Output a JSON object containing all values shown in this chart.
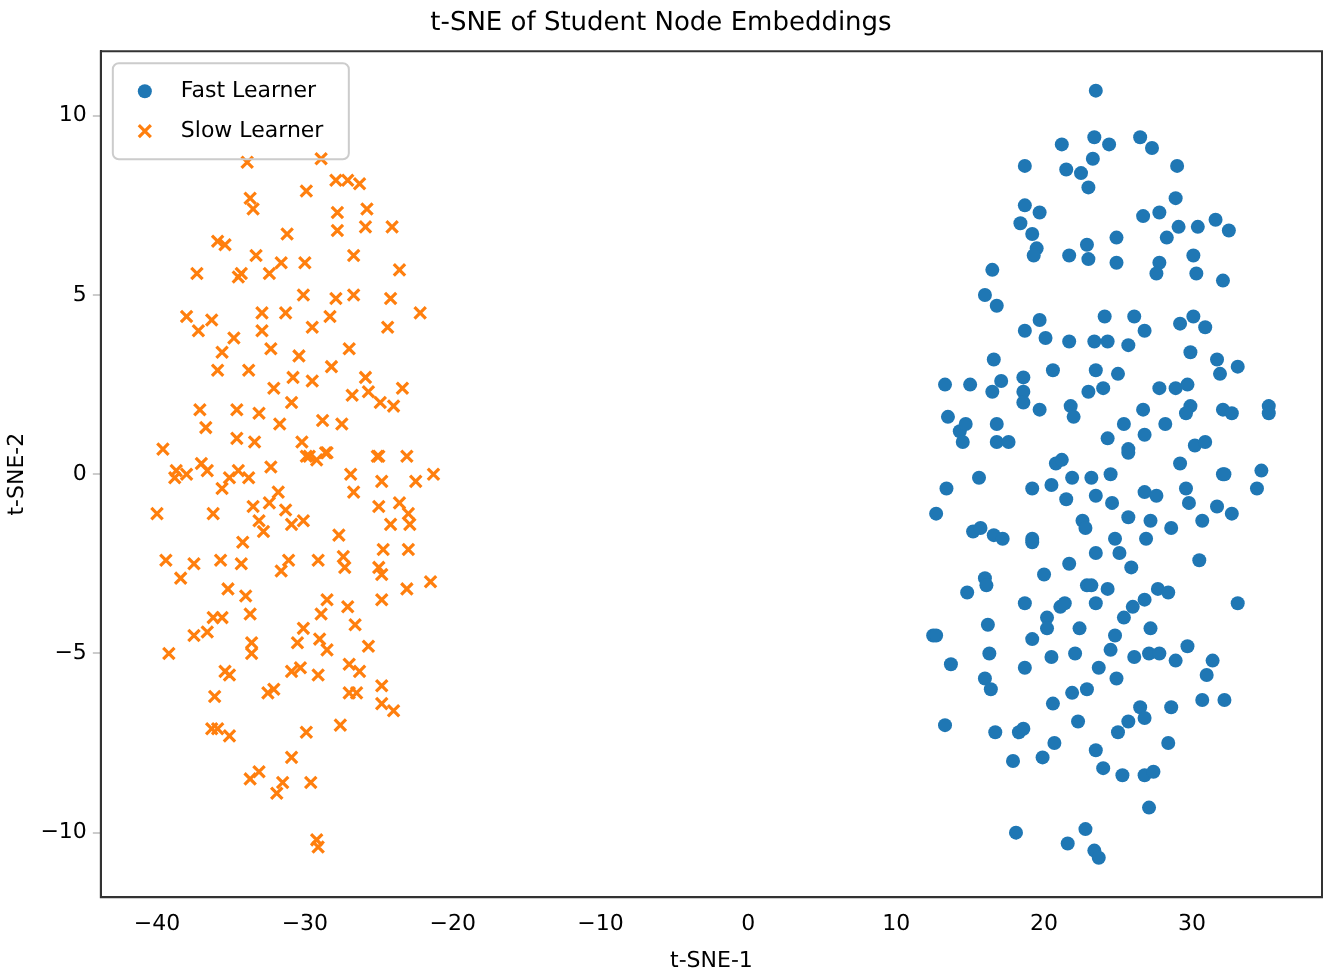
{
  "chart_data": {
    "type": "scatter",
    "title": "t-SNE of Student Node Embeddings",
    "xlabel": "t-SNE-1",
    "ylabel": "t-SNE-2",
    "xlim": [
      -43.8,
      38.8
    ],
    "ylim": [
      -11.8,
      11.8
    ],
    "xticks": [
      -40,
      -30,
      -20,
      -10,
      0,
      10,
      20,
      30
    ],
    "yticks": [
      -10,
      -5,
      0,
      5,
      10
    ],
    "grid": false,
    "legend": "top left",
    "series": [
      {
        "name": "Fast Learner",
        "color": "#1f77b4",
        "marker": "circle",
        "x": [
          23.5,
          21.2,
          23.4,
          24.4,
          26.5,
          27.3,
          18.7,
          21.5,
          22.5,
          23.3,
          23.0,
          29.0,
          28.9,
          18.7,
          19.7,
          18.4,
          19.2,
          19.5,
          19.3,
          21.7,
          22.9,
          23.0,
          24.9,
          24.9,
          26.7,
          27.8,
          29.1,
          30.4,
          31.6,
          32.5,
          28.3,
          27.8,
          27.6,
          30.1,
          30.3,
          32.1,
          16.5,
          16.0,
          16.8,
          19.7,
          18.7,
          20.1,
          21.7,
          23.4,
          24.3,
          24.1,
          26.1,
          26.8,
          25.7,
          29.2,
          30.1,
          30.9,
          29.9,
          31.7,
          31.9,
          33.1,
          16.6,
          13.3,
          15.0,
          17.1,
          16.5,
          18.6,
          18.6,
          18.6,
          20.6,
          23.5,
          25.0,
          23.0,
          24.0,
          21.8,
          22.0,
          19.7,
          27.8,
          28.9,
          29.7,
          29.9,
          29.6,
          32.1,
          32.7,
          35.2,
          35.2,
          13.5,
          14.3,
          14.7,
          14.5,
          16.8,
          16.8,
          17.6,
          26.7,
          25.4,
          26.8,
          28.2,
          24.3,
          25.7,
          30.2,
          30.9,
          15.6,
          20.8,
          21.2,
          23.2,
          24.5,
          29.2,
          32.1,
          34.7,
          13.4,
          12.7,
          19.2,
          20.5,
          21.9,
          21.5,
          23.5,
          24.6,
          25.7,
          26.8,
          27.6,
          29.6,
          29.8,
          31.7,
          32.2,
          34.4,
          32.7,
          30.7,
          28.6,
          27.2,
          26.9,
          25.7,
          22.6,
          22.8,
          24.8,
          15.2,
          15.7,
          16.6,
          17.2,
          19.2,
          19.2,
          23.5,
          25.1,
          25.9,
          21.7,
          30.5,
          20.0,
          16.0,
          16.1,
          14.8,
          18.7,
          21.1,
          21.4,
          22.9,
          23.2,
          24.3,
          23.5,
          26.0,
          26.8,
          27.7,
          28.4,
          33.1,
          16.2,
          12.5,
          12.7,
          20.2,
          20.2,
          19.2,
          22.4,
          25.4,
          24.8,
          27.2,
          24.5,
          26.1,
          27.1,
          27.8,
          28.9,
          29.7,
          31.4,
          16.3,
          13.7,
          18.7,
          20.5,
          22.1,
          23.7,
          24.9,
          16.0,
          16.4,
          21.9,
          22.9,
          31.0,
          30.7,
          32.2,
          20.6,
          26.5,
          26.8,
          25.7,
          25.0,
          28.6,
          22.3,
          13.3,
          16.7,
          18.3,
          18.6,
          20.7,
          19.9,
          17.9,
          23.5,
          24.0,
          25.3,
          26.8,
          27.4,
          28.4,
          27.1,
          18.1,
          21.6,
          22.8,
          23.4,
          23.7
        ],
        "values": [
          10.7,
          9.2,
          9.4,
          9.2,
          9.4,
          9.1,
          8.6,
          8.5,
          8.4,
          8.8,
          8.0,
          8.6,
          7.7,
          7.5,
          7.3,
          7.0,
          6.7,
          6.3,
          6.1,
          6.1,
          6.4,
          6.0,
          6.6,
          5.9,
          7.2,
          7.3,
          6.9,
          6.9,
          7.1,
          6.8,
          6.6,
          5.9,
          5.6,
          6.1,
          5.6,
          5.4,
          5.7,
          5.0,
          4.7,
          4.3,
          4.0,
          3.8,
          3.7,
          3.7,
          3.7,
          4.4,
          4.4,
          4.0,
          3.6,
          4.2,
          4.4,
          4.1,
          3.4,
          3.2,
          2.8,
          3.0,
          3.2,
          2.5,
          2.5,
          2.6,
          2.3,
          2.7,
          2.3,
          2.0,
          2.9,
          2.9,
          2.8,
          2.3,
          2.4,
          1.9,
          1.6,
          1.8,
          2.4,
          2.4,
          2.5,
          1.9,
          1.7,
          1.8,
          1.7,
          1.9,
          1.7,
          1.6,
          1.2,
          1.4,
          0.9,
          1.4,
          0.9,
          0.9,
          1.8,
          1.4,
          1.1,
          1.4,
          1.0,
          0.7,
          0.8,
          0.9,
          -0.1,
          0.3,
          0.4,
          -0.1,
          0.0,
          0.3,
          0.0,
          0.1,
          -0.4,
          -1.1,
          -0.4,
          -0.3,
          -0.1,
          -0.7,
          -0.6,
          -0.8,
          0.6,
          -0.5,
          -0.6,
          -0.4,
          -0.8,
          -0.9,
          0.0,
          -0.4,
          -1.1,
          -1.3,
          -1.5,
          -1.3,
          -1.8,
          -1.2,
          -1.3,
          -1.5,
          -1.8,
          -1.6,
          -1.5,
          -1.7,
          -1.8,
          -1.8,
          -1.9,
          -2.2,
          -2.2,
          -2.6,
          -2.5,
          -2.4,
          -2.8,
          -2.9,
          -3.1,
          -3.3,
          -3.6,
          -3.7,
          -3.6,
          -3.1,
          -3.1,
          -3.2,
          -3.6,
          -3.7,
          -3.5,
          -3.2,
          -3.3,
          -3.6,
          -4.2,
          -4.5,
          -4.5,
          -4.0,
          -4.3,
          -4.6,
          -4.3,
          -4.0,
          -4.5,
          -4.3,
          -4.9,
          -5.1,
          -5.0,
          -5.0,
          -5.2,
          -4.8,
          -5.2,
          -5.0,
          -5.3,
          -5.4,
          -5.1,
          -5.0,
          -5.4,
          -5.7,
          -5.7,
          -6.0,
          -6.1,
          -6.0,
          -5.6,
          -6.3,
          -6.3,
          -6.4,
          -6.5,
          -6.8,
          -6.9,
          -7.2,
          -6.5,
          -6.9,
          -7.0,
          -7.2,
          -7.2,
          -7.1,
          -7.5,
          -7.9,
          -8.0,
          -7.7,
          -8.2,
          -8.4,
          -8.4,
          -8.3,
          -7.5,
          -9.3,
          -10.0,
          -10.3,
          -9.9,
          -10.5,
          -10.7
        ]
      },
      {
        "name": "Slow Learner",
        "color": "#ff7f0e",
        "marker": "cross",
        "x": [
          -33.9,
          -28.9,
          -27.9,
          -27.1,
          -26.3,
          -29.9,
          -33.7,
          -33.5,
          -27.8,
          -25.8,
          -27.8,
          -25.9,
          -24.1,
          -31.2,
          -35.9,
          -35.4,
          -37.3,
          -34.5,
          -34.3,
          -33.3,
          -32.4,
          -31.6,
          -30.0,
          -26.7,
          -23.6,
          -30.1,
          -27.9,
          -26.7,
          -28.3,
          -24.2,
          -22.2,
          -38.0,
          -37.2,
          -36.3,
          -32.9,
          -32.9,
          -31.3,
          -34.8,
          -29.5,
          -24.4,
          -35.6,
          -32.3,
          -30.4,
          -27.0,
          -35.9,
          -33.8,
          -30.8,
          -29.5,
          -28.2,
          -32.1,
          -25.9,
          -26.8,
          -25.7,
          -24.9,
          -24.0,
          -23.4,
          -30.9,
          -37.1,
          -34.6,
          -33.1,
          -36.7,
          -31.7,
          -28.8,
          -27.5,
          -34.6,
          -33.4,
          -30.2,
          -39.6,
          -25.1,
          -23.1,
          -29.7,
          -28.6,
          -38.7,
          -38.8,
          -38.0,
          -37.0,
          -36.6,
          -35.6,
          -35.1,
          -34.5,
          -33.8,
          -32.3,
          -31.8,
          -29.9,
          -29.2,
          -28.5,
          -26.9,
          -26.7,
          -25.0,
          -24.8,
          -22.5,
          -21.3,
          -40.0,
          -36.2,
          -33.5,
          -32.4,
          -31.3,
          -33.1,
          -32.8,
          -30.9,
          -30.1,
          -27.7,
          -25.0,
          -23.6,
          -23.0,
          -24.2,
          -22.9,
          -34.2,
          -24.7,
          -23.0,
          -39.4,
          -38.4,
          -37.5,
          -35.7,
          -34.3,
          -31.6,
          -31.1,
          -29.1,
          -27.4,
          -27.3,
          -25.0,
          -24.8,
          -21.5,
          -35.2,
          -34.0,
          -33.7,
          -28.5,
          -27.1,
          -24.8,
          -23.1,
          -36.2,
          -35.6,
          -36.6,
          -37.5,
          -28.9,
          -26.6,
          -30.1,
          -30.5,
          -29.0,
          -28.5,
          -25.7,
          -33.6,
          -33.6,
          -39.2,
          -35.4,
          -35.1,
          -30.9,
          -30.3,
          -29.1,
          -27.0,
          -26.3,
          -27.0,
          -26.5,
          -24.8,
          -24.8,
          -24.0,
          -32.5,
          -32.1,
          -36.1,
          -36.3,
          -35.9,
          -35.1,
          -29.9,
          -27.6,
          -30.9,
          -33.7,
          -33.1,
          -31.5,
          -31.9,
          -29.6,
          -29.2,
          -29.1
        ],
        "values": [
          8.7,
          8.8,
          8.2,
          8.2,
          8.1,
          7.9,
          7.7,
          7.4,
          7.3,
          7.4,
          6.8,
          6.9,
          6.9,
          6.7,
          6.5,
          6.4,
          5.6,
          5.5,
          5.6,
          6.1,
          5.6,
          5.9,
          5.9,
          6.1,
          5.7,
          5.0,
          4.9,
          5.0,
          4.4,
          4.9,
          4.5,
          4.4,
          4.0,
          4.3,
          4.5,
          4.0,
          4.5,
          3.8,
          4.1,
          4.1,
          3.4,
          3.5,
          3.3,
          3.5,
          2.9,
          2.9,
          2.7,
          2.6,
          3.0,
          2.4,
          2.7,
          2.2,
          2.3,
          2.0,
          1.9,
          2.4,
          2.0,
          1.8,
          1.8,
          1.7,
          1.3,
          1.4,
          1.5,
          1.4,
          1.0,
          0.9,
          0.9,
          0.7,
          0.5,
          0.5,
          0.5,
          0.6,
          0.1,
          -0.1,
          0.0,
          0.3,
          0.1,
          -0.4,
          -0.1,
          0.1,
          -0.1,
          0.2,
          -0.5,
          0.5,
          0.4,
          0.6,
          0.0,
          -0.5,
          0.5,
          -0.2,
          -0.2,
          0.0,
          -1.1,
          -1.1,
          -0.9,
          -0.8,
          -1.0,
          -1.3,
          -1.6,
          -1.4,
          -1.3,
          -1.7,
          -0.9,
          -0.8,
          -1.1,
          -1.4,
          -1.4,
          -1.9,
          -2.1,
          -2.1,
          -2.4,
          -2.9,
          -2.5,
          -2.4,
          -2.5,
          -2.7,
          -2.4,
          -2.4,
          -2.3,
          -2.6,
          -2.6,
          -2.8,
          -3.0,
          -3.2,
          -3.4,
          -3.9,
          -3.5,
          -3.7,
          -3.5,
          -3.2,
          -4.0,
          -4.0,
          -4.4,
          -4.5,
          -3.9,
          -4.2,
          -4.3,
          -4.7,
          -4.6,
          -4.9,
          -4.8,
          -4.7,
          -5.0,
          -5.0,
          -5.5,
          -5.6,
          -5.5,
          -5.4,
          -5.6,
          -5.3,
          -5.5,
          -6.1,
          -6.1,
          -5.9,
          -6.4,
          -6.6,
          -6.1,
          -6.0,
          -6.2,
          -7.1,
          -7.1,
          -7.3,
          -7.2,
          -7.0,
          -7.9,
          -8.5,
          -8.3,
          -8.6,
          -8.9,
          -8.6,
          -10.2,
          -10.4
        ]
      }
    ]
  }
}
